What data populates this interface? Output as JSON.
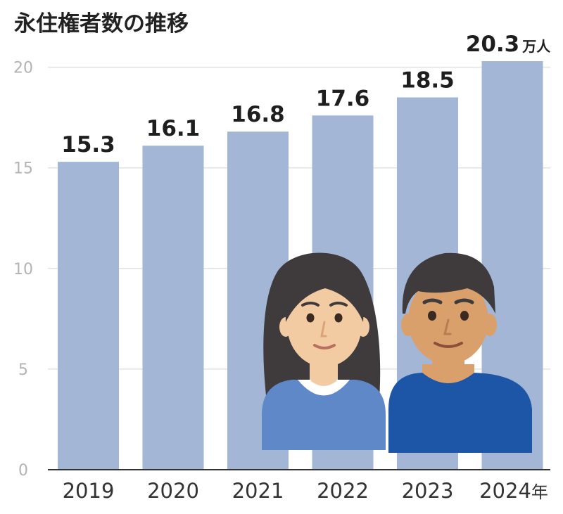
{
  "chart_data": {
    "type": "bar",
    "title": "永住権者数の推移",
    "categories": [
      "2019",
      "2020",
      "2021",
      "2022",
      "2023",
      "2024"
    ],
    "x_suffix": "年",
    "values": [
      15.3,
      16.1,
      16.8,
      17.6,
      18.5,
      20.3
    ],
    "value_labels": [
      "15.3",
      "16.1",
      "16.8",
      "17.6",
      "18.5",
      "20.3"
    ],
    "value_unit": "万人",
    "yticks": [
      "0",
      "5",
      "10",
      "15",
      "20"
    ],
    "ylim": [
      0,
      20.3
    ],
    "grid": true,
    "bar_color": "#a3b6d6"
  },
  "illustration": {
    "icon": "two-people-icon",
    "colors": {
      "hair": "#3f3a3c",
      "skin_woman": "#f3cba2",
      "skin_man": "#d9a06c",
      "shirt_woman": "#5e88c8",
      "shirt_man": "#1d56a6"
    }
  }
}
